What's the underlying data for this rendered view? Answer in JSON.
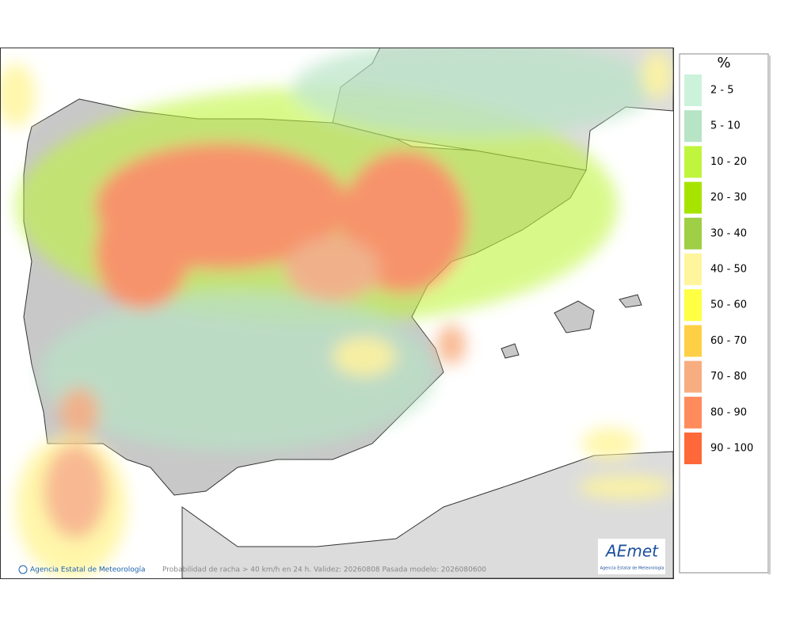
{
  "legend": {
    "title": "%",
    "items": [
      {
        "label": "2 - 5",
        "color": "#ccf2dc"
      },
      {
        "label": "5 - 10",
        "color": "#b6e4c4"
      },
      {
        "label": "10 - 20",
        "color": "#bff53c"
      },
      {
        "label": "20 - 30",
        "color": "#a6e400"
      },
      {
        "label": "30 - 40",
        "color": "#9fcf45"
      },
      {
        "label": "40 - 50",
        "color": "#fff59c"
      },
      {
        "label": "50 - 60",
        "color": "#ffff44"
      },
      {
        "label": "60 - 70",
        "color": "#ffd045"
      },
      {
        "label": "70 - 80",
        "color": "#f7ad80"
      },
      {
        "label": "80 - 90",
        "color": "#ff8a5c"
      },
      {
        "label": "90 - 100",
        "color": "#ff6838"
      }
    ]
  },
  "footer": {
    "credit": "Agencia Estatal de Meteorología",
    "caption": "Probabilidad de racha > 40 km/h en 24 h. Validez: 20260808 Pasada modelo: 2026080600"
  },
  "logo": {
    "name": "AEmet",
    "subtitle": "Agencia Estatal de Meteorología"
  }
}
